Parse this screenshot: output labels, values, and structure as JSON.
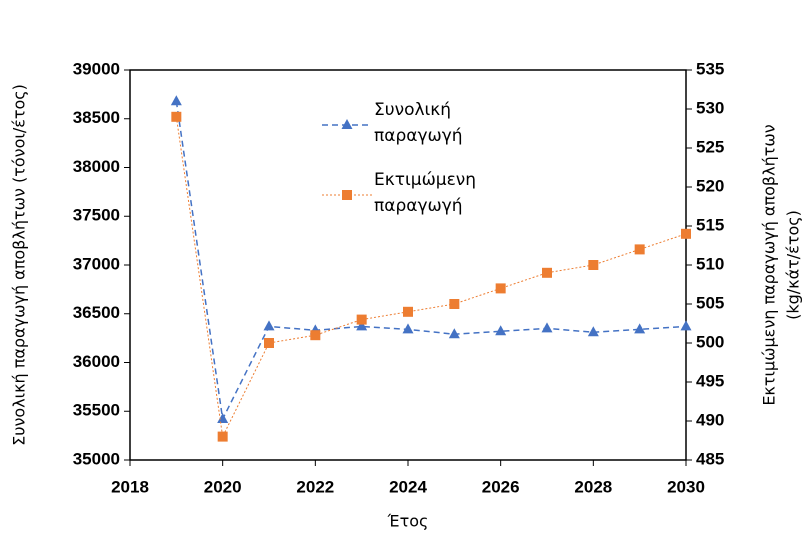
{
  "chart_data": {
    "type": "line",
    "xlabel": "Έτος",
    "ylabel": "Συνολική παραγωγή αποβλήτων (τόνοι/έτος)",
    "y2label": [
      "Εκτιμώμενη παραγωγή αποβλήτων",
      "(kg/κάτ/έτος)"
    ],
    "x": [
      2019,
      2020,
      2021,
      2022,
      2023,
      2024,
      2025,
      2026,
      2027,
      2028,
      2029,
      2030
    ],
    "series": [
      {
        "name": "Συνολική παραγωγή",
        "color": "#4472c4",
        "marker": "triangle",
        "axis": "y",
        "values": [
          38680,
          35420,
          36370,
          36330,
          36370,
          36340,
          36290,
          36320,
          36350,
          36310,
          36340,
          36370
        ]
      },
      {
        "name": "Εκτιμώμενη παραγωγή",
        "color": "#ed7d31",
        "marker": "square",
        "axis": "y2",
        "values": [
          529,
          488,
          500,
          501,
          503,
          504,
          505,
          507,
          509,
          510,
          512,
          514
        ]
      }
    ],
    "xlim": [
      2018,
      2030
    ],
    "xticks": [
      2018,
      2020,
      2022,
      2024,
      2026,
      2028,
      2030
    ],
    "ylim": [
      35000,
      39000
    ],
    "yticks": [
      35000,
      35500,
      36000,
      36500,
      37000,
      37500,
      38000,
      38500,
      39000
    ],
    "y2lim": [
      485,
      535
    ],
    "y2ticks": [
      485,
      490,
      495,
      500,
      505,
      510,
      515,
      520,
      525,
      530,
      535
    ],
    "grid": false
  }
}
